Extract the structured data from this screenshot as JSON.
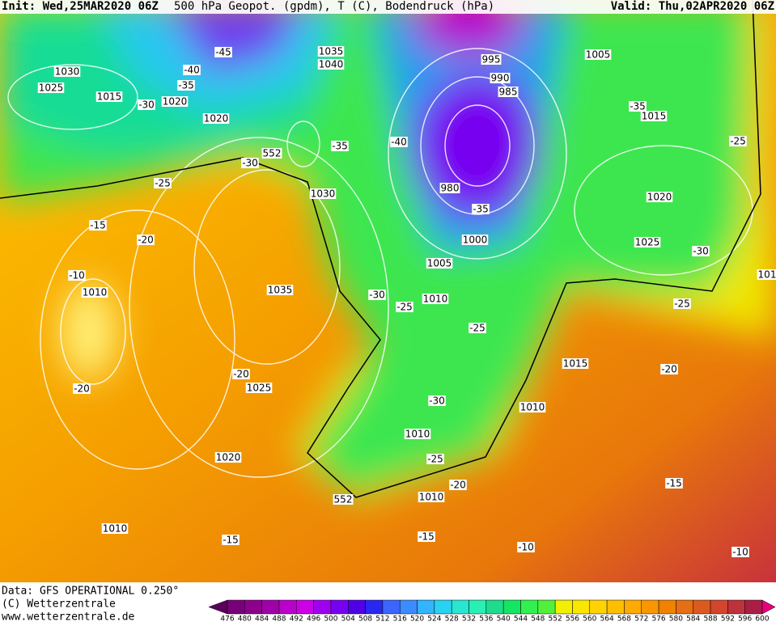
{
  "header": {
    "init": "Init: Wed,25MAR2020 06Z",
    "title": "500 hPa Geopot. (gpdm), T (C), Bodendruck (hPa)",
    "valid": "Valid: Thu,02APR2020 06Z"
  },
  "map": {
    "isobar_labels": [
      1030,
      1025,
      1015,
      1020,
      1020,
      1035,
      1040,
      1030,
      995,
      1005,
      990,
      985,
      1015,
      980,
      1020,
      1000,
      1025,
      1005,
      1010,
      1035,
      1010,
      1015,
      1025,
      1010,
      1010,
      1020,
      1010,
      1010,
      101
    ],
    "temperature_labels": [
      -45,
      -40,
      -35,
      -30,
      -35,
      -40,
      -30,
      -25,
      -35,
      -35,
      -25,
      -15,
      -20,
      -10,
      -30,
      -30,
      -25,
      -25,
      -25,
      -20,
      -20,
      -20,
      -30,
      -25,
      -20,
      -15,
      -15,
      -15,
      -10,
      -10
    ],
    "geopotential_labels": [
      552,
      552
    ]
  },
  "colorbar": {
    "ticks": [
      476,
      480,
      484,
      488,
      492,
      496,
      500,
      504,
      508,
      512,
      516,
      520,
      524,
      528,
      532,
      536,
      540,
      544,
      548,
      552,
      556,
      560,
      564,
      568,
      572,
      576,
      580,
      584,
      588,
      592,
      596,
      600
    ],
    "colors": [
      "#5c005c",
      "#780078",
      "#8c008c",
      "#a000a8",
      "#bb00cc",
      "#cc00e6",
      "#a000f0",
      "#7800f0",
      "#5000e6",
      "#2828f0",
      "#3c64ff",
      "#3c8cff",
      "#32b4ff",
      "#28d2f0",
      "#28e6d2",
      "#28f0b4",
      "#1edc8c",
      "#14e664",
      "#32f050",
      "#50f03c",
      "#f0f000",
      "#fae600",
      "#ffd200",
      "#ffbe00",
      "#ffaa00",
      "#fa9600",
      "#f08200",
      "#e66e14",
      "#dc5a1e",
      "#d2462d",
      "#be323c",
      "#aa1e46",
      "#e6007e"
    ]
  },
  "footer": {
    "data": "Data: GFS OPERATIONAL 0.250°",
    "copyright": "(C) Wetterzentrale",
    "url": "www.wetterzentrale.de"
  }
}
